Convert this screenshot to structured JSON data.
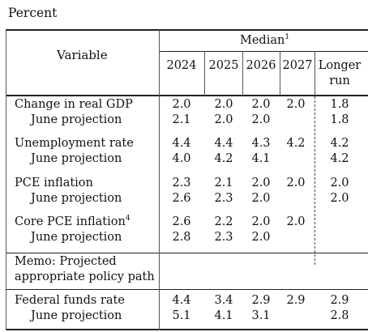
{
  "unit_label": "Percent",
  "header": {
    "variable": "Variable",
    "median": "Median",
    "median_note": "1",
    "years": [
      "2024",
      "2025",
      "2026",
      "2027"
    ],
    "longer_run_line1": "Longer",
    "longer_run_line2": "run"
  },
  "rows": [
    {
      "label": "Change in real GDP",
      "values": [
        "2.0",
        "2.0",
        "2.0",
        "2.0"
      ],
      "longer": "1.8"
    },
    {
      "label": "June projection",
      "values": [
        "2.1",
        "2.0",
        "2.0",
        ""
      ],
      "longer": "1.8"
    },
    {
      "label": "Unemployment rate",
      "values": [
        "4.4",
        "4.4",
        "4.3",
        "4.2"
      ],
      "longer": "4.2"
    },
    {
      "label": "June projection",
      "values": [
        "4.0",
        "4.2",
        "4.1",
        ""
      ],
      "longer": "4.2"
    },
    {
      "label": "PCE inflation",
      "values": [
        "2.3",
        "2.1",
        "2.0",
        "2.0"
      ],
      "longer": "2.0"
    },
    {
      "label": "June projection",
      "values": [
        "2.6",
        "2.3",
        "2.0",
        ""
      ],
      "longer": "2.0"
    },
    {
      "label": "Core PCE inflation",
      "note": "4",
      "values": [
        "2.6",
        "2.2",
        "2.0",
        "2.0"
      ],
      "longer": ""
    },
    {
      "label": "June projection",
      "values": [
        "2.8",
        "2.3",
        "2.0",
        ""
      ],
      "longer": ""
    }
  ],
  "memo": {
    "line1": "Memo: Projected",
    "line2": "appropriate policy path"
  },
  "funds_rows": [
    {
      "label": "Federal funds rate",
      "values": [
        "4.4",
        "3.4",
        "2.9",
        "2.9"
      ],
      "longer": "2.9"
    },
    {
      "label": "June projection",
      "values": [
        "5.1",
        "4.1",
        "3.1",
        ""
      ],
      "longer": "2.8"
    }
  ]
}
